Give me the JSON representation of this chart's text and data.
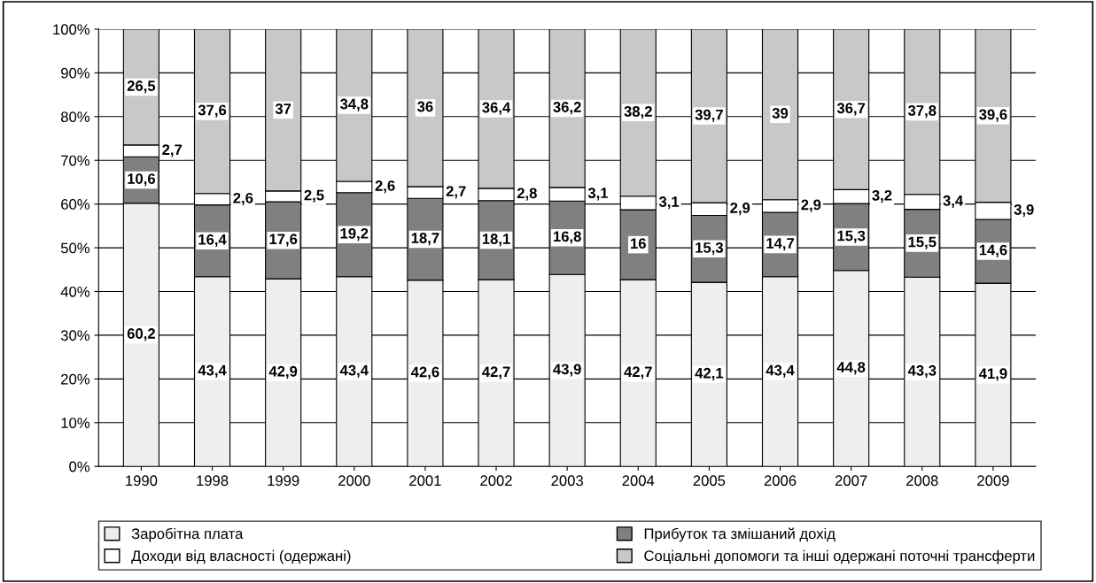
{
  "chart_data": {
    "type": "bar",
    "stacked": true,
    "categories": [
      "1990",
      "1998",
      "1999",
      "2000",
      "2001",
      "2002",
      "2003",
      "2004",
      "2005",
      "2006",
      "2007",
      "2008",
      "2009"
    ],
    "series": [
      {
        "name": "Заробітна плата",
        "color": "#eeeeee",
        "values": [
          60.2,
          43.4,
          42.9,
          43.4,
          42.6,
          42.7,
          43.9,
          42.7,
          42.1,
          43.4,
          44.8,
          43.3,
          41.9
        ],
        "value_labels": [
          "60,2",
          "43,4",
          "42,9",
          "43,4",
          "42,6",
          "42,7",
          "43,9",
          "42,7",
          "42,1",
          "43,4",
          "44,8",
          "43,3",
          "41,9"
        ]
      },
      {
        "name": "Прибуток та змішаний дохід",
        "color": "#808080",
        "values": [
          10.6,
          16.4,
          17.6,
          19.2,
          18.7,
          18.1,
          16.8,
          16,
          15.3,
          14.7,
          15.3,
          15.5,
          14.6
        ],
        "value_labels": [
          "10,6",
          "16,4",
          "17,6",
          "19,2",
          "18,7",
          "18,1",
          "16,8",
          "16",
          "15,3",
          "14,7",
          "15,3",
          "15,5",
          "14,6"
        ]
      },
      {
        "name": "Доходи від власності (одержані)",
        "color": "#ffffff",
        "values": [
          2.7,
          2.6,
          2.5,
          2.6,
          2.7,
          2.8,
          3.1,
          3.1,
          2.9,
          2.9,
          3.2,
          3.4,
          3.9
        ],
        "value_labels": [
          "2,7",
          "2,6",
          "2,5",
          "2,6",
          "2,7",
          "2,8",
          "3,1",
          "3,1",
          "2,9",
          "2,9",
          "3,2",
          "3,4",
          "3,9"
        ]
      },
      {
        "name": "Соціальні допомоги та інші одержані поточні трансферти",
        "color": "#c8c8c8",
        "values": [
          26.5,
          37.6,
          37,
          34.8,
          36,
          36.4,
          36.2,
          38.2,
          39.7,
          39,
          36.7,
          37.8,
          39.6
        ],
        "value_labels": [
          "26,5",
          "37,6",
          "37",
          "34,8",
          "36",
          "36,4",
          "36,2",
          "38,2",
          "39,7",
          "39",
          "36,7",
          "37,8",
          "39,6"
        ]
      }
    ],
    "ylim": [
      0,
      100
    ],
    "yticks": [
      {
        "value": 0,
        "label": "0%"
      },
      {
        "value": 10,
        "label": "10%"
      },
      {
        "value": 20,
        "label": "20%"
      },
      {
        "value": 30,
        "label": "30%"
      },
      {
        "value": 40,
        "label": "40%"
      },
      {
        "value": 50,
        "label": "50%"
      },
      {
        "value": 60,
        "label": "60%"
      },
      {
        "value": 70,
        "label": "70%"
      },
      {
        "value": 80,
        "label": "80%"
      },
      {
        "value": 90,
        "label": "90%"
      },
      {
        "value": 100,
        "label": "100%"
      }
    ],
    "grid": "y",
    "legend": "bottom"
  }
}
